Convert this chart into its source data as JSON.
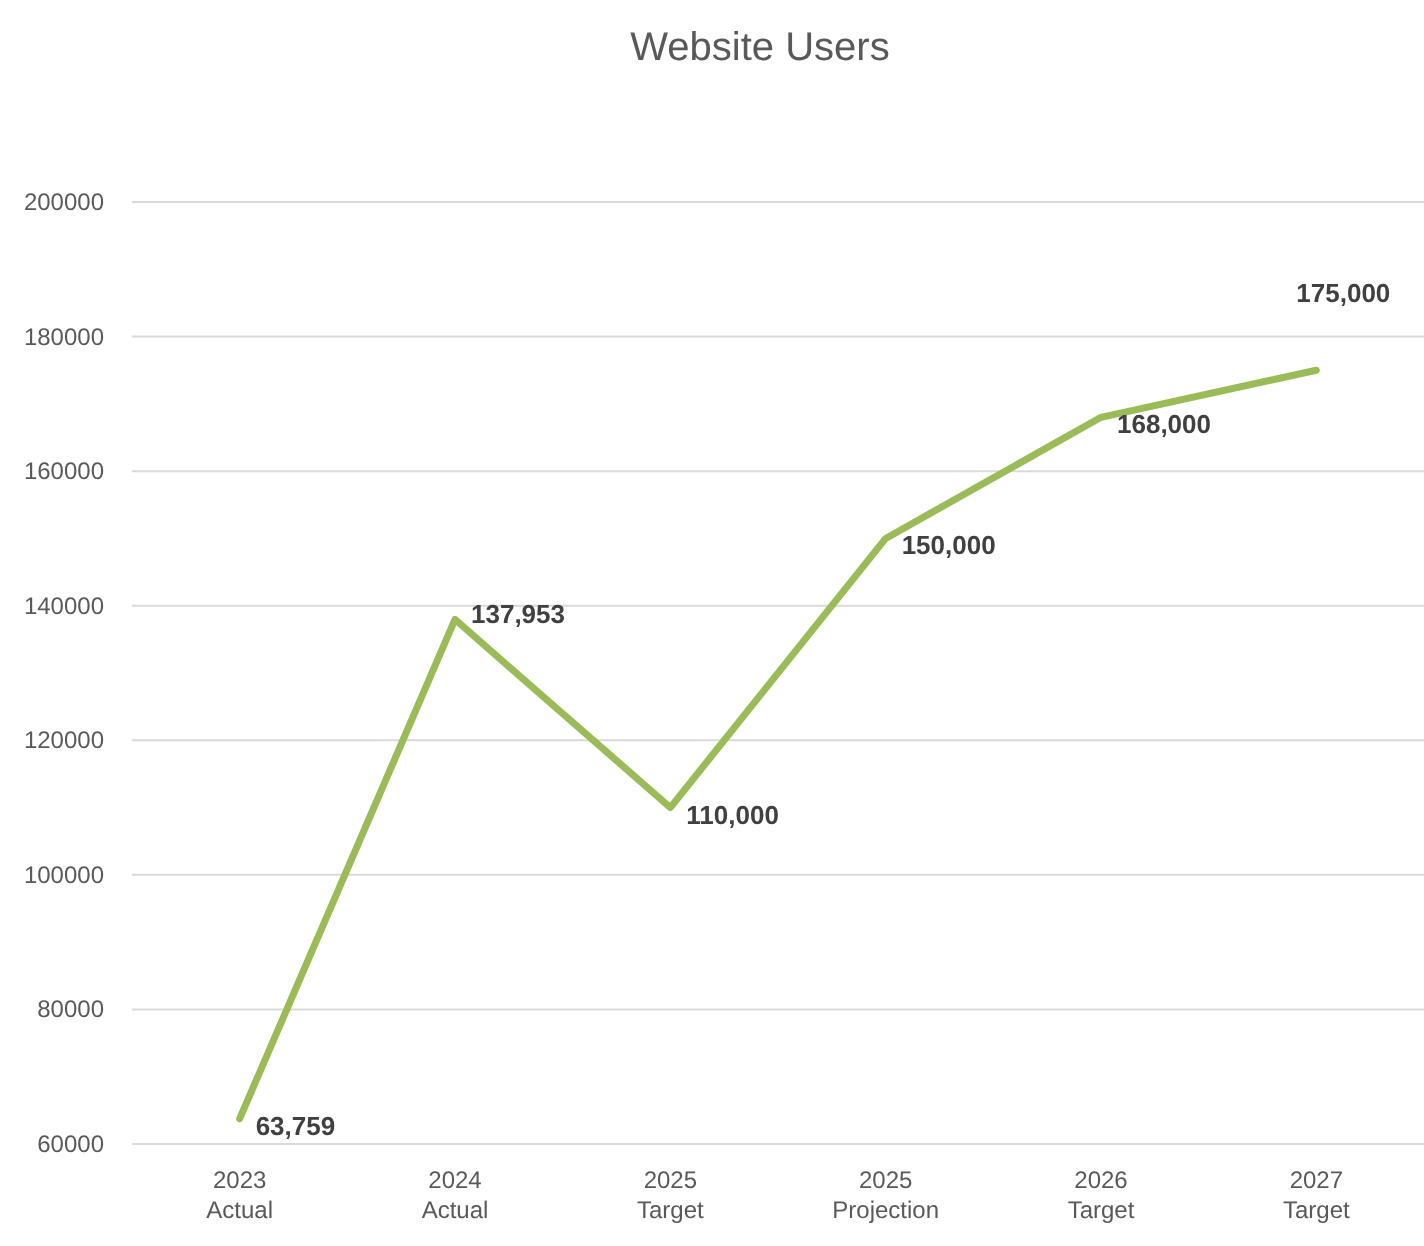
{
  "chart_data": {
    "type": "line",
    "title": "Website Users",
    "categories": [
      "2023\nActual",
      "2024\nActual",
      "2025\nTarget",
      "2025\nProjection",
      "2026\nTarget",
      "2027\nTarget"
    ],
    "series": [
      {
        "color": "#9bbb59",
        "values": [
          63759,
          137953,
          110000,
          150000,
          168000,
          175000
        ],
        "value_labels": [
          "63,759",
          "137,953",
          "110,000",
          "150,000",
          "168,000",
          "175,000"
        ]
      }
    ],
    "ylim": [
      60000,
      200000
    ],
    "yticks": [
      60000,
      80000,
      100000,
      120000,
      140000,
      160000,
      180000,
      200000
    ],
    "grid": "y",
    "marker": "none",
    "line_style": "solid"
  }
}
